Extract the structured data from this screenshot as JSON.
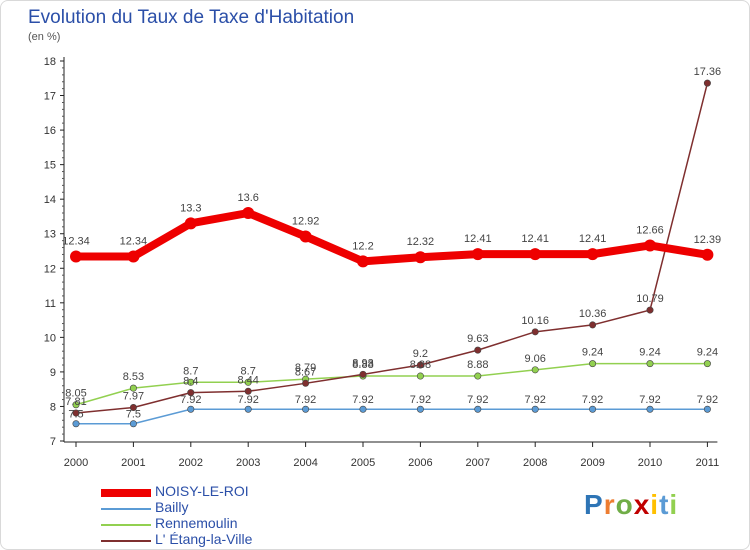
{
  "chart_data": {
    "type": "line",
    "title": "Evolution du Taux de Taxe d'Habitation",
    "subtitle": "(en %)",
    "xlabel": "",
    "ylabel": "",
    "x": [
      "2000",
      "2001",
      "2002",
      "2003",
      "2004",
      "2005",
      "2006",
      "2007",
      "2008",
      "2009",
      "2010",
      "2011"
    ],
    "yticks": [
      7,
      8,
      9,
      10,
      11,
      12,
      13,
      14,
      15,
      16,
      17,
      18
    ],
    "ylim": [
      7,
      18
    ],
    "grid": false,
    "legend_position": "bottom-left",
    "series": [
      {
        "name": "NOISY-LE-ROI",
        "color": "#ee0000",
        "values": [
          12.34,
          12.34,
          13.3,
          13.6,
          12.92,
          12.2,
          12.32,
          12.41,
          12.41,
          12.41,
          12.66,
          12.39
        ],
        "labels": [
          "12.34",
          "12.34",
          "13.3",
          "13.6",
          "12.92",
          "12.2",
          "12.32",
          "12.41",
          "12.41",
          "12.41",
          "12.66",
          "12.39"
        ]
      },
      {
        "name": "Bailly",
        "color": "#5b9bd5",
        "values": [
          7.5,
          7.5,
          7.92,
          7.92,
          7.92,
          7.92,
          7.92,
          7.92,
          7.92,
          7.92,
          7.92,
          7.92
        ],
        "labels": [
          "7.5",
          "7.5",
          "7.92",
          "7.92",
          "7.92",
          "7.92",
          "7.92",
          "7.92",
          "7.92",
          "7.92",
          "7.92",
          "7.92"
        ]
      },
      {
        "name": "Rennemoulin",
        "color": "#92d050",
        "values": [
          8.05,
          8.53,
          8.7,
          8.7,
          8.79,
          8.88,
          8.88,
          8.88,
          9.06,
          9.24,
          9.24,
          9.24
        ],
        "labels": [
          "8.05",
          "8.53",
          "8.7",
          "8.7",
          "8.79",
          "8.88",
          "8.88",
          "8.88",
          "9.06",
          "9.24",
          "9.24",
          "9.24"
        ]
      },
      {
        "name": "L' Étang-la-Ville",
        "color": "#7f2f2f",
        "values": [
          7.81,
          7.97,
          8.4,
          8.44,
          8.67,
          8.93,
          9.2,
          9.63,
          10.16,
          10.36,
          10.79,
          17.36
        ],
        "labels": [
          "7.81",
          "7.97",
          "8.4",
          "8.44",
          "8.67",
          "8.93",
          "9.2",
          "9.63",
          "10.16",
          "10.36",
          "10.79",
          "17.36"
        ]
      }
    ]
  },
  "logo": {
    "letters": [
      "P",
      "r",
      "o",
      "x",
      "i",
      "t",
      "i"
    ],
    "colors": [
      "#2e75b6",
      "#ed7d31",
      "#70ad47",
      "#c00000",
      "#ffc000",
      "#5b9bd5",
      "#92d050"
    ]
  }
}
